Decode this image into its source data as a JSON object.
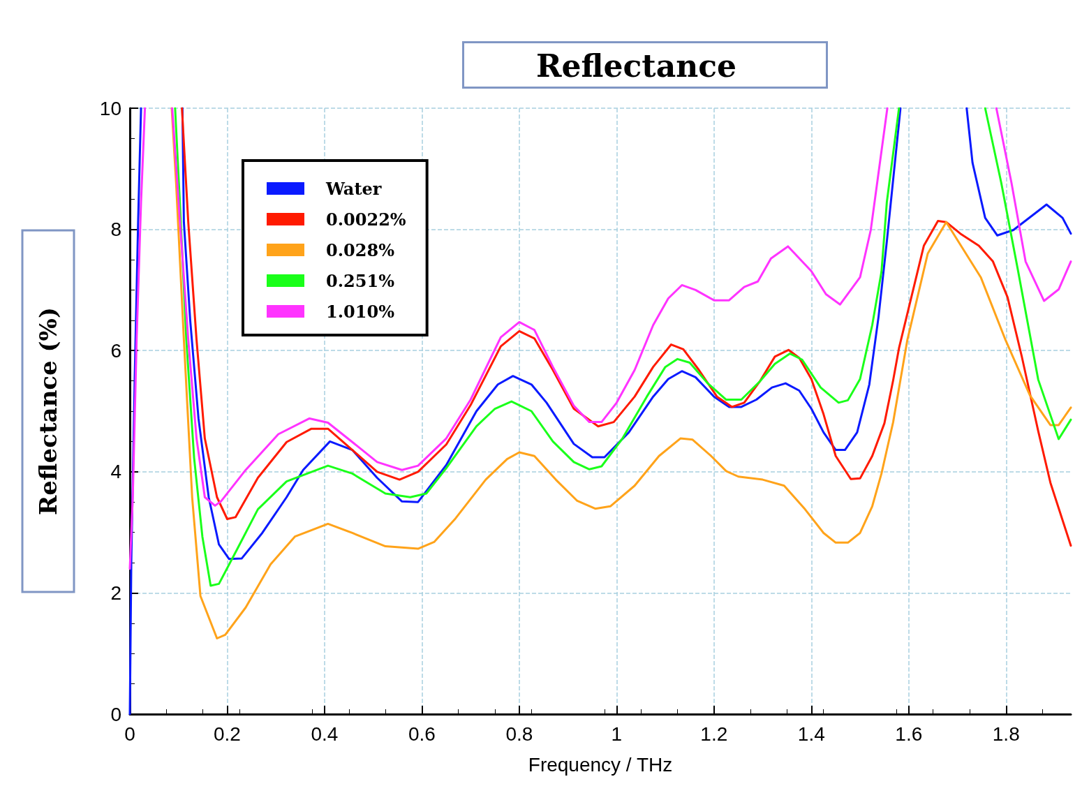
{
  "chart_data": {
    "type": "line",
    "title": "Reflectance",
    "xlabel": "Frequency / THz",
    "ylabel": "Reflectance (%)",
    "xlim": [
      0,
      1.933
    ],
    "ylim": [
      0,
      10
    ],
    "xticks": [
      0,
      0.2,
      0.4,
      0.6,
      0.8,
      1,
      1.2,
      1.4,
      1.6,
      1.8
    ],
    "yticks": [
      0,
      2,
      4,
      6,
      8,
      10
    ],
    "grid": true,
    "legend": "top left",
    "marker": "none",
    "line_style": "solid",
    "series": [
      {
        "name": "Water",
        "color": "#0a1aff",
        "x": [
          0,
          0.003,
          0.01,
          0.017,
          0.023,
          0.06,
          0.108,
          0.111,
          0.124,
          0.141,
          0.162,
          0.183,
          0.204,
          0.23,
          0.272,
          0.322,
          0.356,
          0.411,
          0.457,
          0.508,
          0.559,
          0.592,
          0.65,
          0.712,
          0.756,
          0.787,
          0.825,
          0.856,
          0.912,
          0.95,
          0.975,
          1.025,
          1.075,
          1.106,
          1.134,
          1.162,
          1.2,
          1.231,
          1.256,
          1.287,
          1.319,
          1.347,
          1.375,
          1.4,
          1.425,
          1.45,
          1.469,
          1.494,
          1.519,
          1.538,
          1.555,
          1.583,
          1.65,
          1.719,
          1.731,
          1.757,
          1.782,
          1.815,
          1.883,
          1.916,
          1.933
        ],
        "values": [
          0,
          2.54,
          5.53,
          8.12,
          10,
          null,
          10,
          8.12,
          6.5,
          4.88,
          3.58,
          2.8,
          2.56,
          2.57,
          2.99,
          3.58,
          4.03,
          4.5,
          4.36,
          3.9,
          3.51,
          3.5,
          4.11,
          5.0,
          5.44,
          5.58,
          5.44,
          5.14,
          4.46,
          4.24,
          4.24,
          4.65,
          5.24,
          5.53,
          5.66,
          5.56,
          5.24,
          5.07,
          5.07,
          5.19,
          5.39,
          5.46,
          5.34,
          5.04,
          4.65,
          4.36,
          4.36,
          4.65,
          5.44,
          6.56,
          7.8,
          10,
          null,
          10,
          9.1,
          8.19,
          7.9,
          7.99,
          8.41,
          8.19,
          7.93
        ]
      },
      {
        "name": "0.0022%",
        "color": "#ff1a00",
        "x": [
          0.107,
          0.12,
          0.137,
          0.154,
          0.179,
          0.2,
          0.217,
          0.263,
          0.322,
          0.373,
          0.407,
          0.457,
          0.508,
          0.554,
          0.592,
          0.65,
          0.7,
          0.762,
          0.8,
          0.831,
          0.869,
          0.912,
          0.962,
          0.994,
          1.037,
          1.075,
          1.112,
          1.137,
          1.169,
          1.206,
          1.237,
          1.262,
          1.294,
          1.325,
          1.353,
          1.375,
          1.4,
          1.425,
          1.45,
          1.481,
          1.5,
          1.525,
          1.55,
          1.568,
          1.58,
          1.631,
          1.66,
          1.677,
          1.706,
          1.744,
          1.773,
          1.803,
          1.832,
          1.866,
          1.891,
          1.933
        ],
        "values": [
          10,
          8.12,
          6.18,
          4.55,
          3.58,
          3.22,
          3.25,
          3.9,
          4.49,
          4.71,
          4.71,
          4.36,
          4.0,
          3.87,
          4.0,
          4.45,
          5.1,
          6.07,
          6.32,
          6.2,
          5.68,
          5.04,
          4.75,
          4.82,
          5.24,
          5.73,
          6.1,
          6.02,
          5.68,
          5.24,
          5.07,
          5.14,
          5.49,
          5.9,
          6.01,
          5.88,
          5.53,
          4.95,
          4.26,
          3.88,
          3.89,
          4.26,
          4.8,
          5.51,
          6.04,
          7.73,
          8.14,
          8.12,
          7.93,
          7.73,
          7.47,
          6.88,
          5.91,
          4.67,
          3.82,
          2.78
        ]
      },
      {
        "name": "0.028%",
        "color": "#ffa31a",
        "x": [
          0.086,
          0.095,
          0.111,
          0.128,
          0.145,
          0.179,
          0.196,
          0.238,
          0.289,
          0.339,
          0.407,
          0.457,
          0.525,
          0.592,
          0.625,
          0.669,
          0.731,
          0.775,
          0.8,
          0.831,
          0.875,
          0.919,
          0.956,
          0.987,
          1.037,
          1.087,
          1.131,
          1.156,
          1.194,
          1.225,
          1.25,
          1.3,
          1.344,
          1.387,
          1.425,
          1.45,
          1.475,
          1.5,
          1.525,
          1.544,
          1.568,
          1.597,
          1.639,
          1.677,
          1.748,
          1.799,
          1.849,
          1.891,
          1.908,
          1.933
        ],
        "values": [
          10,
          8.77,
          6.18,
          3.58,
          1.95,
          1.25,
          1.31,
          1.76,
          2.47,
          2.93,
          3.14,
          2.99,
          2.77,
          2.73,
          2.84,
          3.23,
          3.87,
          4.21,
          4.32,
          4.26,
          3.87,
          3.52,
          3.39,
          3.43,
          3.77,
          4.26,
          4.55,
          4.53,
          4.26,
          4.01,
          3.92,
          3.87,
          3.77,
          3.38,
          2.99,
          2.83,
          2.83,
          2.99,
          3.43,
          3.97,
          4.82,
          6.17,
          7.6,
          8.12,
          7.21,
          6.17,
          5.26,
          4.77,
          4.77,
          5.06
        ]
      },
      {
        "name": "0.251%",
        "color": "#1aff1a",
        "x": [
          0.093,
          0.103,
          0.116,
          0.132,
          0.149,
          0.166,
          0.183,
          0.221,
          0.263,
          0.322,
          0.407,
          0.457,
          0.525,
          0.576,
          0.609,
          0.65,
          0.712,
          0.75,
          0.784,
          0.825,
          0.869,
          0.912,
          0.944,
          0.969,
          1.012,
          1.062,
          1.1,
          1.125,
          1.15,
          1.187,
          1.225,
          1.256,
          1.294,
          1.325,
          1.356,
          1.381,
          1.419,
          1.456,
          1.475,
          1.5,
          1.525,
          1.544,
          1.555,
          1.58,
          1.67,
          1.757,
          1.79,
          1.824,
          1.866,
          1.908,
          1.933
        ],
        "values": [
          10,
          8.4,
          6.18,
          4.23,
          2.93,
          2.12,
          2.15,
          2.73,
          3.38,
          3.84,
          4.1,
          3.97,
          3.64,
          3.58,
          3.64,
          4.06,
          4.75,
          5.04,
          5.16,
          5.0,
          4.5,
          4.16,
          4.04,
          4.09,
          4.55,
          5.24,
          5.73,
          5.86,
          5.8,
          5.46,
          5.19,
          5.19,
          5.49,
          5.78,
          5.95,
          5.85,
          5.39,
          5.14,
          5.18,
          5.53,
          6.42,
          7.3,
          8.45,
          10,
          null,
          10,
          8.77,
          7.34,
          5.52,
          4.54,
          4.86
        ]
      },
      {
        "name": "1.010%",
        "color": "#ff33ff",
        "x": [
          0,
          0.006,
          0.014,
          0.023,
          0.031,
          0.06,
          0.087,
          0.103,
          0.12,
          0.137,
          0.154,
          0.175,
          0.187,
          0.238,
          0.305,
          0.369,
          0.407,
          0.457,
          0.508,
          0.559,
          0.592,
          0.65,
          0.7,
          0.762,
          0.8,
          0.831,
          0.869,
          0.912,
          0.944,
          0.969,
          1.0,
          1.037,
          1.075,
          1.106,
          1.134,
          1.162,
          1.2,
          1.231,
          1.262,
          1.29,
          1.317,
          1.352,
          1.4,
          1.43,
          1.459,
          1.5,
          1.522,
          1.556,
          1.67,
          1.78,
          1.811,
          1.84,
          1.878,
          1.908,
          1.933
        ],
        "values": [
          2.4,
          3.58,
          6.2,
          8.45,
          10,
          null,
          10,
          8.12,
          6.18,
          4.55,
          3.58,
          3.44,
          3.51,
          4.03,
          4.62,
          4.88,
          4.81,
          4.49,
          4.16,
          4.03,
          4.1,
          4.55,
          5.19,
          6.22,
          6.47,
          6.34,
          5.73,
          5.09,
          4.82,
          4.82,
          5.14,
          5.68,
          6.42,
          6.86,
          7.08,
          7.0,
          6.83,
          6.83,
          7.05,
          7.14,
          7.52,
          7.72,
          7.31,
          6.93,
          6.76,
          7.21,
          7.99,
          10,
          null,
          10,
          8.77,
          7.47,
          6.82,
          7.01,
          7.47
        ]
      }
    ]
  }
}
